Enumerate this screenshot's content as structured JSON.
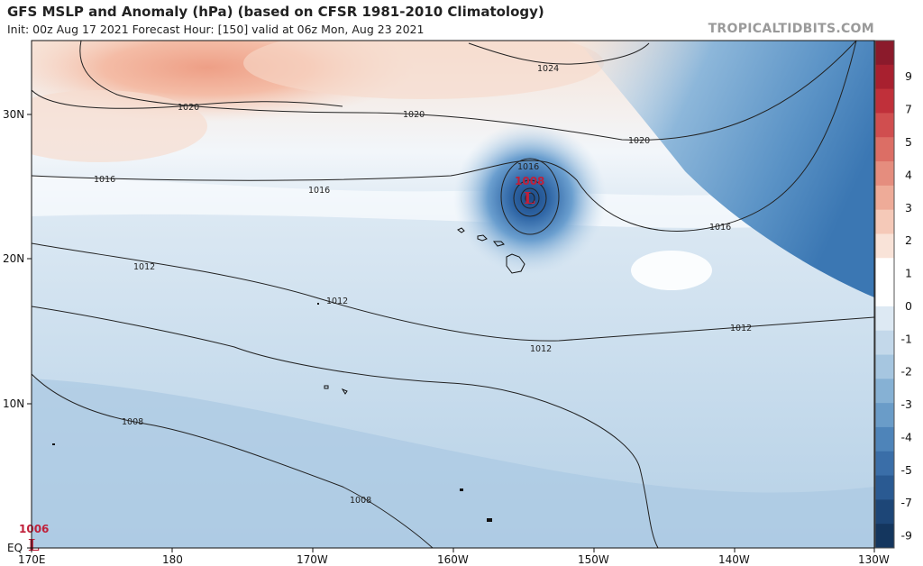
{
  "header": {
    "title": "GFS MSLP and Anomaly (hPa) (based on CFSR 1981-2010 Climatology)",
    "subtitle": "Init: 00z Aug 17 2021   Forecast Hour: [150]   valid at 06z Mon, Aug 23 2021",
    "brand": "TROPICALTIDBITS.COM"
  },
  "map": {
    "lon_labels": [
      "170E",
      "180",
      "170W",
      "160W",
      "150W",
      "140W",
      "130W"
    ],
    "lat_labels": [
      "30N",
      "20N",
      "10N",
      "EQ"
    ],
    "contour_labels": [
      "1024",
      "1020",
      "1020",
      "1020",
      "1016",
      "1016",
      "1016",
      "1016",
      "1012",
      "1012",
      "1012",
      "1012",
      "1008",
      "1008"
    ],
    "lows": [
      {
        "value": "1008",
        "symbol": "L"
      },
      {
        "value": "1006",
        "symbol": "L"
      }
    ]
  },
  "colorbar": {
    "labels": [
      "9",
      "7",
      "5",
      "4",
      "3",
      "2",
      "1",
      "0",
      "-1",
      "-2",
      "-3",
      "-4",
      "-5",
      "-7",
      "-9"
    ],
    "colors": [
      "#8b1a2b",
      "#a8202f",
      "#c0303a",
      "#d04e4f",
      "#dc6e65",
      "#e58d7e",
      "#eeab98",
      "#f5c9b8",
      "#f9e3d8",
      "#ffffff",
      "#ffffff",
      "#dde9f3",
      "#c3d8ea",
      "#a6c6e0",
      "#86b1d4",
      "#6a9cc8",
      "#4e84b9",
      "#3a6ea8",
      "#2a5a92",
      "#1d4677",
      "#14365e"
    ]
  }
}
